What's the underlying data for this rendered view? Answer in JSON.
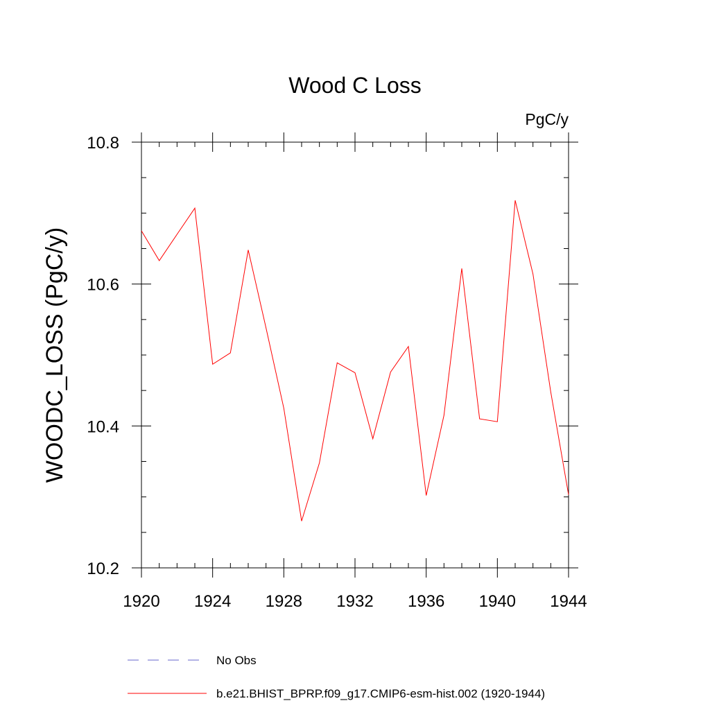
{
  "chart_data": {
    "type": "line",
    "title": "Wood C Loss",
    "units_label": "PgC/y",
    "xlabel": "",
    "ylabel": "WOODC_LOSS  (PgC/y)",
    "xlim": [
      1920,
      1944
    ],
    "ylim": [
      10.2,
      10.8
    ],
    "x_ticks": [
      1920,
      1924,
      1928,
      1932,
      1936,
      1940,
      1944
    ],
    "x_tick_labels": [
      "1920",
      "1924",
      "1928",
      "1932",
      "1936",
      "1940",
      "1944"
    ],
    "y_ticks": [
      10.2,
      10.4,
      10.6,
      10.8
    ],
    "y_tick_labels": [
      "10.2",
      "10.4",
      "10.6",
      "10.8"
    ],
    "y_minor_step": 0.05,
    "x_minor_step": 1,
    "grid": false,
    "series": [
      {
        "name": "b.e21.BHIST_BPRP.f09_g17.CMIP6-esm-hist.002 (1920-1944)",
        "color": "#ff0000",
        "style": "solid",
        "x": [
          1920,
          1921,
          1922,
          1923,
          1924,
          1925,
          1926,
          1927,
          1928,
          1929,
          1930,
          1931,
          1932,
          1933,
          1934,
          1935,
          1936,
          1937,
          1938,
          1939,
          1940,
          1941,
          1942,
          1943,
          1944
        ],
        "values": [
          10.675,
          10.633,
          10.67,
          10.707,
          10.487,
          10.503,
          10.648,
          10.538,
          10.425,
          10.266,
          10.348,
          10.489,
          10.475,
          10.382,
          10.476,
          10.512,
          10.302,
          10.415,
          10.622,
          10.41,
          10.406,
          10.718,
          10.614,
          10.448,
          10.303
        ]
      }
    ],
    "legend": {
      "placement": "bottom",
      "entries": [
        {
          "label": "No Obs",
          "color": "#6666cc",
          "style": "dashed"
        },
        {
          "label": "b.e21.BHIST_BPRP.f09_g17.CMIP6-esm-hist.002 (1920-1944)",
          "color": "#ff0000",
          "style": "solid"
        }
      ]
    }
  }
}
